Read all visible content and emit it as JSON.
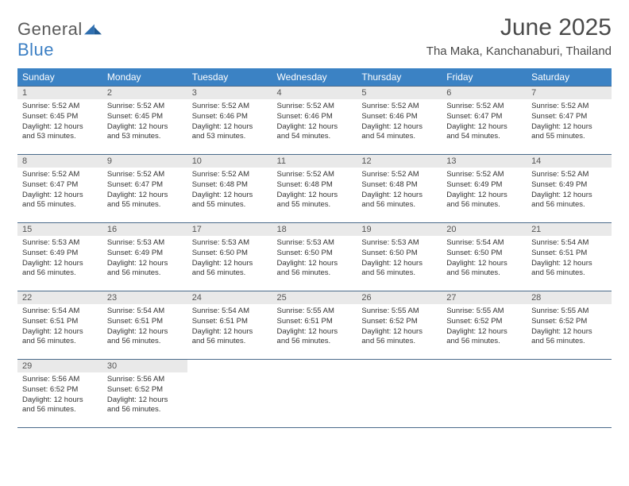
{
  "brand": {
    "general": "General",
    "blue": "Blue",
    "mark_color": "#2f6fb0"
  },
  "title": "June 2025",
  "location": "Tha Maka, Kanchanaburi, Thailand",
  "colors": {
    "header_bg": "#3b82c4",
    "header_fg": "#ffffff",
    "daynum_bg": "#e9e9e9",
    "rule": "#4a6a8a"
  },
  "dow": [
    "Sunday",
    "Monday",
    "Tuesday",
    "Wednesday",
    "Thursday",
    "Friday",
    "Saturday"
  ],
  "weeks": [
    [
      {
        "n": "1",
        "sr": "Sunrise: 5:52 AM",
        "ss": "Sunset: 6:45 PM",
        "dl": "Daylight: 12 hours and 53 minutes."
      },
      {
        "n": "2",
        "sr": "Sunrise: 5:52 AM",
        "ss": "Sunset: 6:45 PM",
        "dl": "Daylight: 12 hours and 53 minutes."
      },
      {
        "n": "3",
        "sr": "Sunrise: 5:52 AM",
        "ss": "Sunset: 6:46 PM",
        "dl": "Daylight: 12 hours and 53 minutes."
      },
      {
        "n": "4",
        "sr": "Sunrise: 5:52 AM",
        "ss": "Sunset: 6:46 PM",
        "dl": "Daylight: 12 hours and 54 minutes."
      },
      {
        "n": "5",
        "sr": "Sunrise: 5:52 AM",
        "ss": "Sunset: 6:46 PM",
        "dl": "Daylight: 12 hours and 54 minutes."
      },
      {
        "n": "6",
        "sr": "Sunrise: 5:52 AM",
        "ss": "Sunset: 6:47 PM",
        "dl": "Daylight: 12 hours and 54 minutes."
      },
      {
        "n": "7",
        "sr": "Sunrise: 5:52 AM",
        "ss": "Sunset: 6:47 PM",
        "dl": "Daylight: 12 hours and 55 minutes."
      }
    ],
    [
      {
        "n": "8",
        "sr": "Sunrise: 5:52 AM",
        "ss": "Sunset: 6:47 PM",
        "dl": "Daylight: 12 hours and 55 minutes."
      },
      {
        "n": "9",
        "sr": "Sunrise: 5:52 AM",
        "ss": "Sunset: 6:47 PM",
        "dl": "Daylight: 12 hours and 55 minutes."
      },
      {
        "n": "10",
        "sr": "Sunrise: 5:52 AM",
        "ss": "Sunset: 6:48 PM",
        "dl": "Daylight: 12 hours and 55 minutes."
      },
      {
        "n": "11",
        "sr": "Sunrise: 5:52 AM",
        "ss": "Sunset: 6:48 PM",
        "dl": "Daylight: 12 hours and 55 minutes."
      },
      {
        "n": "12",
        "sr": "Sunrise: 5:52 AM",
        "ss": "Sunset: 6:48 PM",
        "dl": "Daylight: 12 hours and 56 minutes."
      },
      {
        "n": "13",
        "sr": "Sunrise: 5:52 AM",
        "ss": "Sunset: 6:49 PM",
        "dl": "Daylight: 12 hours and 56 minutes."
      },
      {
        "n": "14",
        "sr": "Sunrise: 5:52 AM",
        "ss": "Sunset: 6:49 PM",
        "dl": "Daylight: 12 hours and 56 minutes."
      }
    ],
    [
      {
        "n": "15",
        "sr": "Sunrise: 5:53 AM",
        "ss": "Sunset: 6:49 PM",
        "dl": "Daylight: 12 hours and 56 minutes."
      },
      {
        "n": "16",
        "sr": "Sunrise: 5:53 AM",
        "ss": "Sunset: 6:49 PM",
        "dl": "Daylight: 12 hours and 56 minutes."
      },
      {
        "n": "17",
        "sr": "Sunrise: 5:53 AM",
        "ss": "Sunset: 6:50 PM",
        "dl": "Daylight: 12 hours and 56 minutes."
      },
      {
        "n": "18",
        "sr": "Sunrise: 5:53 AM",
        "ss": "Sunset: 6:50 PM",
        "dl": "Daylight: 12 hours and 56 minutes."
      },
      {
        "n": "19",
        "sr": "Sunrise: 5:53 AM",
        "ss": "Sunset: 6:50 PM",
        "dl": "Daylight: 12 hours and 56 minutes."
      },
      {
        "n": "20",
        "sr": "Sunrise: 5:54 AM",
        "ss": "Sunset: 6:50 PM",
        "dl": "Daylight: 12 hours and 56 minutes."
      },
      {
        "n": "21",
        "sr": "Sunrise: 5:54 AM",
        "ss": "Sunset: 6:51 PM",
        "dl": "Daylight: 12 hours and 56 minutes."
      }
    ],
    [
      {
        "n": "22",
        "sr": "Sunrise: 5:54 AM",
        "ss": "Sunset: 6:51 PM",
        "dl": "Daylight: 12 hours and 56 minutes."
      },
      {
        "n": "23",
        "sr": "Sunrise: 5:54 AM",
        "ss": "Sunset: 6:51 PM",
        "dl": "Daylight: 12 hours and 56 minutes."
      },
      {
        "n": "24",
        "sr": "Sunrise: 5:54 AM",
        "ss": "Sunset: 6:51 PM",
        "dl": "Daylight: 12 hours and 56 minutes."
      },
      {
        "n": "25",
        "sr": "Sunrise: 5:55 AM",
        "ss": "Sunset: 6:51 PM",
        "dl": "Daylight: 12 hours and 56 minutes."
      },
      {
        "n": "26",
        "sr": "Sunrise: 5:55 AM",
        "ss": "Sunset: 6:52 PM",
        "dl": "Daylight: 12 hours and 56 minutes."
      },
      {
        "n": "27",
        "sr": "Sunrise: 5:55 AM",
        "ss": "Sunset: 6:52 PM",
        "dl": "Daylight: 12 hours and 56 minutes."
      },
      {
        "n": "28",
        "sr": "Sunrise: 5:55 AM",
        "ss": "Sunset: 6:52 PM",
        "dl": "Daylight: 12 hours and 56 minutes."
      }
    ],
    [
      {
        "n": "29",
        "sr": "Sunrise: 5:56 AM",
        "ss": "Sunset: 6:52 PM",
        "dl": "Daylight: 12 hours and 56 minutes."
      },
      {
        "n": "30",
        "sr": "Sunrise: 5:56 AM",
        "ss": "Sunset: 6:52 PM",
        "dl": "Daylight: 12 hours and 56 minutes."
      },
      null,
      null,
      null,
      null,
      null
    ]
  ]
}
